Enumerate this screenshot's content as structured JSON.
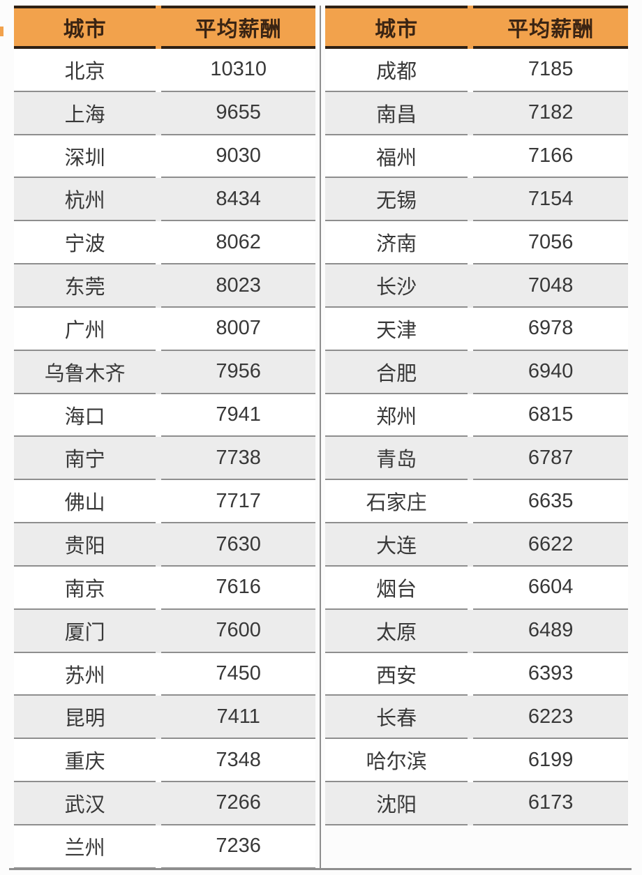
{
  "colors": {
    "header_bg": "#f2a24c",
    "header_border": "#2e2014",
    "header_text": "#3a2413",
    "row_alt_bg": "#ececec",
    "separator": "#8e8e8e",
    "body_text": "#383838",
    "page_bg": "#fcfcfc"
  },
  "chart_data": {
    "type": "table",
    "title": "",
    "columns": [
      "城市",
      "平均薪酬"
    ],
    "tables": [
      {
        "rows": [
          [
            "北京",
            "10310"
          ],
          [
            "上海",
            "9655"
          ],
          [
            "深圳",
            "9030"
          ],
          [
            "杭州",
            "8434"
          ],
          [
            "宁波",
            "8062"
          ],
          [
            "东莞",
            "8023"
          ],
          [
            "广州",
            "8007"
          ],
          [
            "乌鲁木齐",
            "7956"
          ],
          [
            "海口",
            "7941"
          ],
          [
            "南宁",
            "7738"
          ],
          [
            "佛山",
            "7717"
          ],
          [
            "贵阳",
            "7630"
          ],
          [
            "南京",
            "7616"
          ],
          [
            "厦门",
            "7600"
          ],
          [
            "苏州",
            "7450"
          ],
          [
            "昆明",
            "7411"
          ],
          [
            "重庆",
            "7348"
          ],
          [
            "武汉",
            "7266"
          ],
          [
            "兰州",
            "7236"
          ]
        ]
      },
      {
        "rows": [
          [
            "成都",
            "7185"
          ],
          [
            "南昌",
            "7182"
          ],
          [
            "福州",
            "7166"
          ],
          [
            "无锡",
            "7154"
          ],
          [
            "济南",
            "7056"
          ],
          [
            "长沙",
            "7048"
          ],
          [
            "天津",
            "6978"
          ],
          [
            "合肥",
            "6940"
          ],
          [
            "郑州",
            "6815"
          ],
          [
            "青岛",
            "6787"
          ],
          [
            "石家庄",
            "6635"
          ],
          [
            "大连",
            "6622"
          ],
          [
            "烟台",
            "6604"
          ],
          [
            "太原",
            "6489"
          ],
          [
            "西安",
            "6393"
          ],
          [
            "长春",
            "6223"
          ],
          [
            "哈尔滨",
            "6199"
          ],
          [
            "沈阳",
            "6173"
          ]
        ]
      }
    ]
  }
}
